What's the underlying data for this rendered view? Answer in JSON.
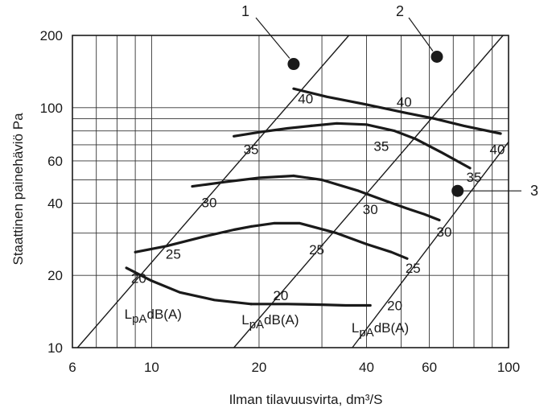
{
  "chart_data": {
    "type": "line",
    "xlabel": "Ilman tilavuusvirta, dm³/S",
    "ylabel": "Staattinen painehäviö Pa",
    "x_scale": "log",
    "y_scale": "log",
    "xlim": [
      6,
      100
    ],
    "ylim": [
      10,
      200
    ],
    "x_ticks": [
      6,
      10,
      20,
      40,
      60,
      100
    ],
    "x_tick_labels": [
      "6",
      "10",
      "20",
      "40",
      "60",
      "100"
    ],
    "y_ticks": [
      10,
      20,
      40,
      60,
      100,
      200
    ],
    "y_tick_labels": [
      "10",
      "20",
      "40",
      "60",
      "100",
      "200"
    ],
    "x_gridlines": [
      6,
      7,
      8,
      9,
      10,
      20,
      30,
      40,
      50,
      60,
      70,
      80,
      90,
      100
    ],
    "y_gridlines": [
      10,
      20,
      30,
      40,
      50,
      60,
      70,
      80,
      90,
      100,
      200
    ],
    "grid": true,
    "unit_label": {
      "main": "L",
      "sub": "pA",
      "rest": "dB(A)"
    },
    "size_lines": [
      {
        "callout": "1",
        "points": [
          [
            6.2,
            10
          ],
          [
            35.7,
            200
          ]
        ]
      },
      {
        "callout": "2",
        "points": [
          [
            17.0,
            10
          ],
          [
            96.5,
            200
          ]
        ]
      },
      {
        "callout": "3",
        "points": [
          [
            36.5,
            10
          ],
          [
            100,
            72
          ]
        ]
      }
    ],
    "callout_points": [
      {
        "callout": "1",
        "x": 25,
        "y": 152
      },
      {
        "callout": "2",
        "x": 63,
        "y": 163
      },
      {
        "callout": "3",
        "x": 72,
        "y": 45
      }
    ],
    "series": [
      {
        "name": "40",
        "size": 1,
        "x": [
          25,
          31,
          40,
          50
        ],
        "y": [
          120,
          111,
          103,
          96
        ]
      },
      {
        "name": "40",
        "size": 2,
        "x": [
          50,
          62,
          75,
          95
        ],
        "y": [
          96,
          90,
          84,
          78
        ]
      },
      {
        "name": "35",
        "size": 1,
        "x": [
          17,
          20,
          24,
          28
        ],
        "y": [
          76,
          79,
          82,
          84
        ]
      },
      {
        "name": "35",
        "size": 2,
        "x": [
          28,
          33,
          40,
          48,
          55,
          65,
          78
        ],
        "y": [
          84,
          86,
          85,
          80,
          74,
          65,
          56
        ]
      },
      {
        "name": "30",
        "size": 1,
        "x": [
          13,
          16,
          20,
          25
        ],
        "y": [
          47,
          49,
          51,
          52
        ]
      },
      {
        "name": "30",
        "size": 2,
        "x": [
          25,
          30,
          38,
          45,
          52,
          58,
          64
        ],
        "y": [
          52,
          50,
          45,
          41,
          38,
          36,
          34
        ]
      },
      {
        "name": "25",
        "size": 1,
        "x": [
          9.0,
          11,
          14,
          17,
          19
        ],
        "y": [
          25,
          26.5,
          29,
          31,
          32
        ]
      },
      {
        "name": "25",
        "size": 2,
        "x": [
          19,
          22,
          26,
          33,
          40,
          47,
          52
        ],
        "y": [
          32,
          33,
          33,
          30,
          27,
          25,
          23.5
        ]
      },
      {
        "name": "20",
        "size": 1,
        "x": [
          8.5,
          10,
          12,
          15,
          19
        ],
        "y": [
          21.5,
          19,
          17,
          15.8,
          15.2
        ]
      },
      {
        "name": "20",
        "size": 2,
        "x": [
          19,
          24,
          30,
          35,
          41
        ],
        "y": [
          15.2,
          15.2,
          15.1,
          15.0,
          15.0
        ]
      }
    ],
    "data_labels": [
      {
        "text": "40",
        "x": 27,
        "y": 104
      },
      {
        "text": "40",
        "x": 51,
        "y": 101
      },
      {
        "text": "40",
        "x": 93,
        "y": 64
      },
      {
        "text": "35",
        "x": 19,
        "y": 64
      },
      {
        "text": "35",
        "x": 44,
        "y": 66
      },
      {
        "text": "35",
        "x": 80,
        "y": 49
      },
      {
        "text": "30",
        "x": 14.5,
        "y": 38.5
      },
      {
        "text": "30",
        "x": 41,
        "y": 36
      },
      {
        "text": "30",
        "x": 66,
        "y": 29
      },
      {
        "text": "25",
        "x": 11.5,
        "y": 23.5
      },
      {
        "text": "25",
        "x": 29,
        "y": 24.5
      },
      {
        "text": "25",
        "x": 54,
        "y": 20.5
      },
      {
        "text": "20",
        "x": 9.2,
        "y": 18.6
      },
      {
        "text": "20",
        "x": 23,
        "y": 15.8
      },
      {
        "text": "20",
        "x": 48,
        "y": 14.3
      }
    ],
    "unit_label_positions": [
      {
        "x": 10.1,
        "y": 13.2
      },
      {
        "x": 21.5,
        "y": 12.5
      },
      {
        "x": 43.7,
        "y": 11.6
      }
    ],
    "callouts": [
      "1",
      "2",
      "3"
    ]
  }
}
